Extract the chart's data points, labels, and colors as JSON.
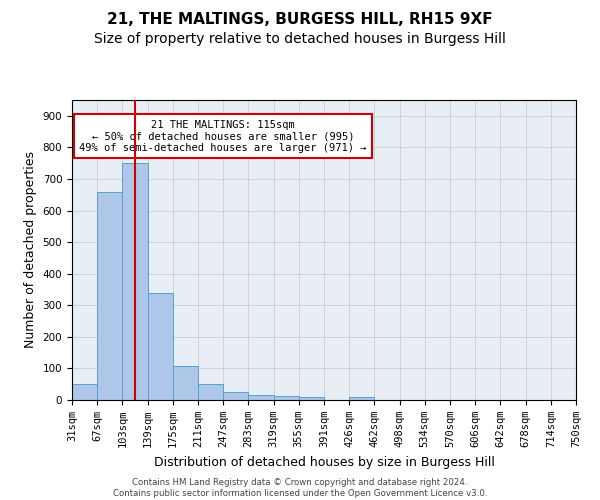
{
  "title": "21, THE MALTINGS, BURGESS HILL, RH15 9XF",
  "subtitle": "Size of property relative to detached houses in Burgess Hill",
  "xlabel": "Distribution of detached houses by size in Burgess Hill",
  "ylabel": "Number of detached properties",
  "bar_values": [
    50,
    660,
    750,
    340,
    108,
    50,
    25,
    15,
    12,
    8,
    0,
    8,
    0,
    0,
    0,
    0,
    0,
    0,
    0,
    0
  ],
  "x_tick_labels": [
    "31sqm",
    "67sqm",
    "103sqm",
    "139sqm",
    "175sqm",
    "211sqm",
    "247sqm",
    "283sqm",
    "319sqm",
    "355sqm",
    "391sqm",
    "426sqm",
    "462sqm",
    "498sqm",
    "534sqm",
    "570sqm",
    "606sqm",
    "642sqm",
    "678sqm",
    "714sqm",
    "750sqm"
  ],
  "bar_color": "#aec6e8",
  "bar_edge_color": "#5a9fd4",
  "vline_x": 2.0,
  "vline_color": "#cc0000",
  "annotation_text": "21 THE MALTINGS: 115sqm\n← 50% of detached houses are smaller (995)\n49% of semi-detached houses are larger (971) →",
  "annotation_box_color": "#cc0000",
  "ylim": [
    0,
    950
  ],
  "yticks": [
    0,
    100,
    200,
    300,
    400,
    500,
    600,
    700,
    800,
    900
  ],
  "grid_color": "#cccccc",
  "bg_color": "#e8eef5",
  "footer_line1": "Contains HM Land Registry data © Crown copyright and database right 2024.",
  "footer_line2": "Contains public sector information licensed under the Open Government Licence v3.0.",
  "title_fontsize": 11,
  "subtitle_fontsize": 10,
  "label_fontsize": 9,
  "tick_fontsize": 7.5
}
